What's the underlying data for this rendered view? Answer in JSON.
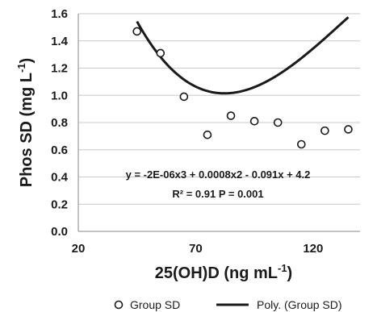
{
  "chart_data": {
    "type": "scatter",
    "xlabel": "25(OH)D (ng mL",
    "xlabel_sup": "-1",
    "xlabel_close": ")",
    "ylabel": "Phos SD (mg L",
    "ylabel_sup": "-1",
    "ylabel_close": ")",
    "xlim": [
      20,
      140
    ],
    "ylim": [
      0.0,
      1.6
    ],
    "x_ticks": [
      20,
      70,
      120
    ],
    "x_tick_labels": [
      "20",
      "70",
      "120"
    ],
    "y_ticks": [
      0.0,
      0.2,
      0.4,
      0.6,
      0.8,
      1.0,
      1.2,
      1.4,
      1.6
    ],
    "y_tick_labels": [
      "0.0",
      "0.2",
      "0.4",
      "0.6",
      "0.8",
      "1.0",
      "1.2",
      "1.4",
      "1.6"
    ],
    "grid": "horizontal",
    "series": [
      {
        "name": "Group SD",
        "kind": "scatter",
        "marker": "open-circle",
        "x": [
          45,
          55,
          65,
          75,
          85,
          95,
          105,
          115,
          125,
          135
        ],
        "y": [
          1.47,
          1.31,
          0.99,
          0.71,
          0.85,
          0.81,
          0.8,
          0.64,
          0.74,
          0.75
        ]
      },
      {
        "name": "Poly. (Group SD)",
        "kind": "trendline",
        "x_range": [
          45,
          135
        ],
        "coefficients": {
          "a3": -2e-06,
          "a2": 0.0008,
          "a1": -0.091,
          "a0": 4.2
        }
      }
    ],
    "annotations": {
      "equation": "y = -2E-06x3 + 0.0008x2 - 0.091x + 4.2",
      "stats": "R² = 0.91  P = 0.001"
    },
    "legend_position": "bottom",
    "colors": {
      "ink": "#1a1a1a",
      "grid": "#c8c8c8",
      "background": "#ffffff"
    }
  }
}
